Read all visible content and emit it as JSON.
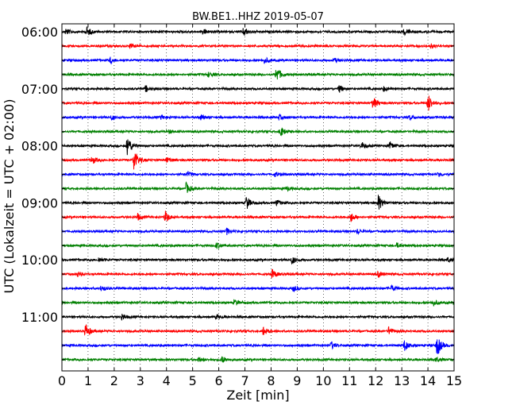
{
  "chart_data": {
    "type": "line",
    "title": "BW.BE1..HHZ 2019-05-07",
    "xlabel": "Zeit  [min]",
    "ylabel": "UTC (Lokalzeit = UTC + 02:00)",
    "xlim": [
      0,
      15
    ],
    "x_ticks": [
      "0",
      "1",
      "2",
      "3",
      "4",
      "5",
      "6",
      "7",
      "8",
      "9",
      "10",
      "11",
      "12",
      "13",
      "14",
      "15"
    ],
    "y_tick_labels": [
      "06:00",
      "07:00",
      "08:00",
      "09:00",
      "10:00",
      "11:00"
    ],
    "grid": "vertical-dotted",
    "trace_colors": [
      "#000000",
      "#ff0000",
      "#0000ff",
      "#008000"
    ],
    "traces_count": 24,
    "events": [
      {
        "row": 0,
        "t": 0.15,
        "amp": 4
      },
      {
        "row": 0,
        "t": 0.95,
        "amp": 6
      },
      {
        "row": 0,
        "t": 5.4,
        "amp": 4
      },
      {
        "row": 0,
        "t": 6.95,
        "amp": 6
      },
      {
        "row": 0,
        "t": 13.1,
        "amp": 5
      },
      {
        "row": 1,
        "t": 2.6,
        "amp": 3
      },
      {
        "row": 1,
        "t": 14.1,
        "amp": 3
      },
      {
        "row": 2,
        "t": 1.85,
        "amp": 4
      },
      {
        "row": 2,
        "t": 7.75,
        "amp": 4
      },
      {
        "row": 2,
        "t": 10.4,
        "amp": 3
      },
      {
        "row": 3,
        "t": 8.2,
        "amp": 11
      },
      {
        "row": 3,
        "t": 5.6,
        "amp": 3
      },
      {
        "row": 4,
        "t": 3.2,
        "amp": 4
      },
      {
        "row": 4,
        "t": 10.6,
        "amp": 5
      },
      {
        "row": 4,
        "t": 12.3,
        "amp": 3
      },
      {
        "row": 5,
        "t": 11.9,
        "amp": 8
      },
      {
        "row": 5,
        "t": 14.0,
        "amp": 12
      },
      {
        "row": 6,
        "t": 1.9,
        "amp": 3
      },
      {
        "row": 6,
        "t": 3.8,
        "amp": 3
      },
      {
        "row": 6,
        "t": 5.3,
        "amp": 3
      },
      {
        "row": 6,
        "t": 8.3,
        "amp": 3
      },
      {
        "row": 6,
        "t": 13.3,
        "amp": 3
      },
      {
        "row": 7,
        "t": 8.35,
        "amp": 7
      },
      {
        "row": 7,
        "t": 4.1,
        "amp": 2
      },
      {
        "row": 8,
        "t": 2.5,
        "amp": 14
      },
      {
        "row": 8,
        "t": 11.45,
        "amp": 5
      },
      {
        "row": 8,
        "t": 12.55,
        "amp": 5
      },
      {
        "row": 9,
        "t": 2.75,
        "amp": 16
      },
      {
        "row": 9,
        "t": 1.15,
        "amp": 5
      },
      {
        "row": 9,
        "t": 4.0,
        "amp": 4
      },
      {
        "row": 10,
        "t": 4.8,
        "amp": 3
      },
      {
        "row": 10,
        "t": 8.15,
        "amp": 3
      },
      {
        "row": 10,
        "t": 14.4,
        "amp": 3
      },
      {
        "row": 11,
        "t": 4.75,
        "amp": 7
      },
      {
        "row": 11,
        "t": 8.6,
        "amp": 3
      },
      {
        "row": 12,
        "t": 7.05,
        "amp": 9
      },
      {
        "row": 12,
        "t": 12.1,
        "amp": 10
      },
      {
        "row": 12,
        "t": 8.2,
        "amp": 4
      },
      {
        "row": 13,
        "t": 3.95,
        "amp": 8
      },
      {
        "row": 13,
        "t": 11.05,
        "amp": 6
      },
      {
        "row": 13,
        "t": 2.9,
        "amp": 4
      },
      {
        "row": 14,
        "t": 6.3,
        "amp": 4
      },
      {
        "row": 14,
        "t": 11.3,
        "amp": 3
      },
      {
        "row": 15,
        "t": 5.9,
        "amp": 4
      },
      {
        "row": 15,
        "t": 12.8,
        "amp": 3
      },
      {
        "row": 16,
        "t": 8.8,
        "amp": 5
      },
      {
        "row": 16,
        "t": 14.75,
        "amp": 3
      },
      {
        "row": 16,
        "t": 1.4,
        "amp": 3
      },
      {
        "row": 17,
        "t": 8.05,
        "amp": 6
      },
      {
        "row": 17,
        "t": 0.6,
        "amp": 3
      },
      {
        "row": 17,
        "t": 12.1,
        "amp": 4
      },
      {
        "row": 18,
        "t": 1.5,
        "amp": 4
      },
      {
        "row": 18,
        "t": 8.85,
        "amp": 4
      },
      {
        "row": 18,
        "t": 12.6,
        "amp": 4
      },
      {
        "row": 19,
        "t": 6.6,
        "amp": 4
      },
      {
        "row": 19,
        "t": 14.2,
        "amp": 4
      },
      {
        "row": 20,
        "t": 2.3,
        "amp": 4
      },
      {
        "row": 20,
        "t": 5.9,
        "amp": 3
      },
      {
        "row": 21,
        "t": 0.9,
        "amp": 10
      },
      {
        "row": 21,
        "t": 7.7,
        "amp": 5
      },
      {
        "row": 21,
        "t": 12.5,
        "amp": 5
      },
      {
        "row": 22,
        "t": 14.35,
        "amp": 14
      },
      {
        "row": 22,
        "t": 13.1,
        "amp": 7
      },
      {
        "row": 22,
        "t": 10.3,
        "amp": 5
      },
      {
        "row": 23,
        "t": 6.1,
        "amp": 5
      },
      {
        "row": 23,
        "t": 5.2,
        "amp": 3
      },
      {
        "row": 23,
        "t": 14.3,
        "amp": 3
      }
    ]
  }
}
